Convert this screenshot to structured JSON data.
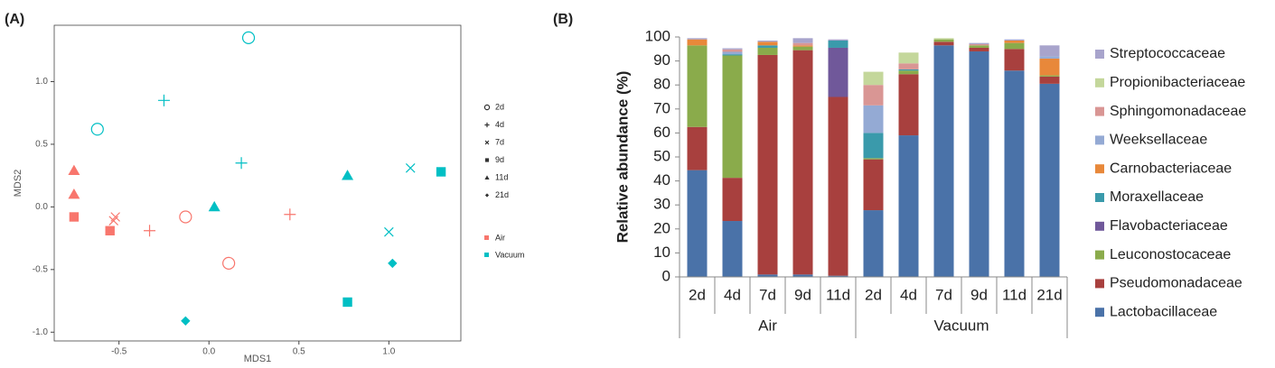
{
  "chart_data": [
    {
      "type": "scatter",
      "label": "(A)",
      "x_label": "MDS1",
      "y_label": "MDS2",
      "xlim": [
        -0.86,
        1.4
      ],
      "ylim": [
        -1.07,
        1.45
      ],
      "xticks": [
        -0.5,
        {
          "value": 0,
          "label": "0.0"
        },
        0.5,
        {
          "value": 1,
          "label": "1.0"
        }
      ],
      "yticks": [
        {
          "value": -1,
          "label": "-1.0"
        },
        -0.5,
        {
          "value": 0,
          "label": "0.0"
        },
        0.5,
        {
          "value": 1,
          "label": "1.0"
        }
      ],
      "shape_legend": [
        "2d",
        "4d",
        "7d",
        "9d",
        "11d",
        "21d"
      ],
      "markers": [
        "circle",
        "plus",
        "cross",
        "square",
        "triangle",
        "diamond"
      ],
      "series": [
        {
          "name": "Air",
          "color": "#f8766d",
          "x": [
            -0.75,
            -0.75,
            -0.75,
            -0.55,
            -0.52,
            -0.53,
            -0.33,
            0.45,
            -0.13,
            0.11
          ],
          "values": [
            0.29,
            0.1,
            -0.08,
            -0.19,
            -0.08,
            -0.11,
            -0.19,
            -0.06,
            -0.08,
            -0.45
          ],
          "days": [
            "11d",
            "11d",
            "9d",
            "9d",
            "7d",
            "7d",
            "4d",
            "4d",
            "2d",
            "2d"
          ]
        },
        {
          "name": "Vacuum",
          "color": "#00bfc4",
          "x": [
            -0.62,
            0.22,
            -0.25,
            0.18,
            0.03,
            0.77,
            1.12,
            1.0,
            1.29,
            0.77,
            1.02,
            -0.13
          ],
          "values": [
            0.62,
            1.35,
            0.85,
            0.35,
            0.0,
            0.25,
            0.31,
            -0.2,
            0.28,
            -0.76,
            -0.45,
            -0.91
          ],
          "days": [
            "2d",
            "2d",
            "4d",
            "4d",
            "11d",
            "11d",
            "7d",
            "7d",
            "9d",
            "9d",
            "21d",
            "21d"
          ]
        }
      ]
    },
    {
      "type": "bar",
      "label": "(B)",
      "y_label": "Relative abundance (%)",
      "ylim": [
        0,
        100
      ],
      "yticks": [
        0,
        10,
        20,
        30,
        40,
        50,
        60,
        70,
        80,
        90,
        100
      ],
      "categories": [
        "2d",
        "4d",
        "7d",
        "9d",
        "11d",
        "2d",
        "4d",
        "7d",
        "9d",
        "11d",
        "21d"
      ],
      "category_groups": [
        "Air",
        "Air",
        "Air",
        "Air",
        "Air",
        "Vacuum",
        "Vacuum",
        "Vacuum",
        "Vacuum",
        "Vacuum",
        "Vacuum"
      ],
      "series": [
        {
          "name": "Lactobacillaceae",
          "color": "#4a72a8",
          "values": [
            44.5,
            23.3,
            1,
            1,
            0.5,
            27.8,
            59,
            96.5,
            94,
            86,
            80.5
          ]
        },
        {
          "name": "Pseudomonadaceae",
          "color": "#a8403e",
          "values": [
            18,
            18,
            91.5,
            93.5,
            74.5,
            21.2,
            25.5,
            1.5,
            1.5,
            9,
            3
          ]
        },
        {
          "name": "Leuconostocaceae",
          "color": "#8aab4b",
          "values": [
            34,
            51,
            3,
            1.5,
            0,
            0.5,
            1.5,
            1,
            1,
            2.5,
            0.5
          ]
        },
        {
          "name": "Flavobacteriaceae",
          "color": "#70589a",
          "values": [
            0,
            0,
            0,
            0,
            20.5,
            0,
            0,
            0,
            0,
            0,
            0
          ]
        },
        {
          "name": "Moraxellaceae",
          "color": "#3a9aab",
          "values": [
            0,
            0.5,
            1,
            0,
            3,
            10.5,
            0.5,
            0,
            0,
            0,
            0
          ]
        },
        {
          "name": "Carnobacteriaceae",
          "color": "#e8883a",
          "values": [
            2.5,
            0,
            1.5,
            0.5,
            0,
            0,
            0,
            0,
            0,
            1,
            7
          ]
        },
        {
          "name": "Weeksellaceae",
          "color": "#94aad4",
          "values": [
            0,
            1,
            0,
            0,
            0,
            11.5,
            0,
            0,
            0,
            0,
            1
          ]
        },
        {
          "name": "Sphingomonadaceae",
          "color": "#d99694",
          "values": [
            0,
            1,
            0,
            1,
            0,
            8.5,
            2.5,
            0,
            0.5,
            0,
            0
          ]
        },
        {
          "name": "Propionibacteriaceae",
          "color": "#c4d79b",
          "values": [
            0,
            0,
            0,
            0,
            0,
            5.5,
            4.5,
            0.5,
            0,
            0,
            0
          ]
        },
        {
          "name": "Streptococcaceae",
          "color": "#a8a4cc",
          "values": [
            0.5,
            0.5,
            0.5,
            2,
            0.5,
            0,
            0,
            0,
            0.5,
            0.5,
            4.5
          ]
        }
      ]
    }
  ]
}
